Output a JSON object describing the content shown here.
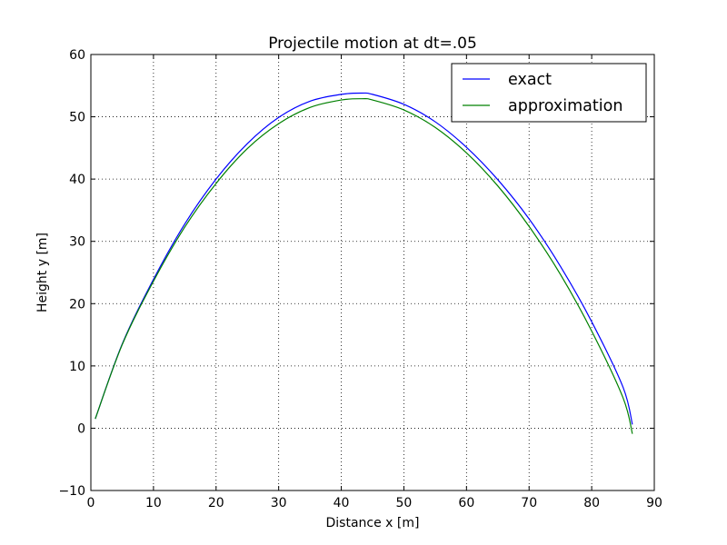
{
  "chart_data": {
    "type": "line",
    "title": "Projectile motion at dt=.05",
    "xlabel": "Distance x [m]",
    "ylabel": "Height y [m]",
    "xlim": [
      0,
      90
    ],
    "ylim": [
      -10,
      60
    ],
    "xticks": [
      0,
      10,
      20,
      30,
      40,
      50,
      60,
      70,
      80,
      90
    ],
    "yticks": [
      -10,
      0,
      10,
      20,
      30,
      40,
      50,
      60
    ],
    "xtick_labels": [
      "0",
      "10",
      "20",
      "30",
      "40",
      "50",
      "60",
      "70",
      "80",
      "90"
    ],
    "ytick_labels": [
      "−10",
      "0",
      "10",
      "20",
      "30",
      "40",
      "50",
      "60"
    ],
    "grid": true,
    "grid_style": "dotted",
    "legend_position": "top-right",
    "series": [
      {
        "name": "exact",
        "color": "#0000ff",
        "x": [
          0.7,
          5,
          10,
          15,
          20,
          25,
          30,
          35,
          40,
          43.3,
          45,
          50,
          55,
          60,
          65,
          70,
          75,
          80,
          85,
          86.5
        ],
        "y": [
          1.5,
          13.5,
          23.9,
          32.8,
          40.0,
          45.7,
          49.9,
          52.5,
          53.6,
          53.8,
          53.6,
          52.0,
          49.2,
          45.1,
          39.9,
          33.6,
          26.0,
          17.1,
          6.6,
          0.6
        ]
      },
      {
        "name": "approximation",
        "color": "#008000",
        "x": [
          0.7,
          5,
          10,
          15,
          20,
          25,
          30,
          35,
          40,
          43.3,
          45,
          50,
          55,
          60,
          65,
          70,
          75,
          80,
          85,
          86.5
        ],
        "y": [
          1.5,
          13.4,
          23.6,
          32.3,
          39.3,
          44.9,
          48.9,
          51.5,
          52.7,
          52.9,
          52.7,
          51.1,
          48.3,
          44.2,
          38.9,
          32.4,
          24.7,
          15.6,
          4.9,
          -0.9
        ]
      }
    ]
  }
}
